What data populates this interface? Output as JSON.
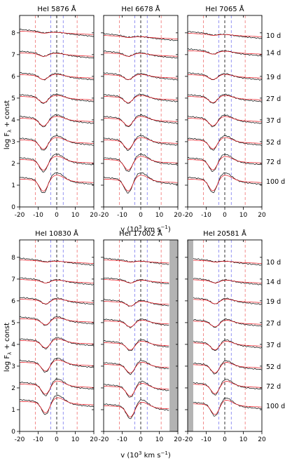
{
  "figure": {
    "epochs": [
      "10 d",
      "14 d",
      "19 d",
      "27 d",
      "37 d",
      "52 d",
      "72 d",
      "100 d"
    ],
    "y_label": "log F",
    "y_label_sub": "λ",
    "y_label_tail": " + const",
    "x_label": "v (10",
    "x_label_sup": "3",
    "x_label_tail": " km s",
    "x_label_sup2": "−1",
    "x_label_end": ")",
    "x_ticks": [
      "-20",
      "-10",
      "0",
      "10",
      "20"
    ],
    "y_ticks": [
      "0",
      "1",
      "2",
      "3",
      "4",
      "5",
      "6",
      "7",
      "8"
    ],
    "colors": {
      "observed": "#000000",
      "model": "#e8101a",
      "red_marker": "#f07070",
      "blue_marker": "#7a7af0",
      "shade": "#b3b3b3"
    }
  },
  "chart_data": [
    {
      "type": "line",
      "title": "HeI 5876 Å",
      "xlim": [
        -20,
        20
      ],
      "ylim": [
        0,
        8.8
      ],
      "row": 0,
      "col": 0,
      "markers_red": [
        -11.5,
        11.0
      ],
      "markers_blue": [
        -3.2,
        3.5
      ],
      "center": 0,
      "series": [
        {
          "name": "10 d",
          "baseline": 8.0
        },
        {
          "name": "14 d",
          "baseline": 7.0
        },
        {
          "name": "19 d",
          "baseline": 6.0
        },
        {
          "name": "27 d",
          "baseline": 5.0
        },
        {
          "name": "37 d",
          "baseline": 4.0
        },
        {
          "name": "52 d",
          "baseline": 3.0
        },
        {
          "name": "72 d",
          "baseline": 2.1
        },
        {
          "name": "100 d",
          "baseline": 1.2
        }
      ]
    },
    {
      "type": "line",
      "title": "HeI 6678 Å",
      "xlim": [
        -20,
        20
      ],
      "ylim": [
        0,
        8.8
      ],
      "row": 0,
      "col": 1,
      "markers_red": [
        -11.5,
        11.0
      ],
      "markers_blue": [
        -3.2,
        3.5
      ],
      "center": 0,
      "series": [
        {
          "name": "10 d",
          "baseline": 7.8
        },
        {
          "name": "14 d",
          "baseline": 7.0
        },
        {
          "name": "19 d",
          "baseline": 6.0
        },
        {
          "name": "27 d",
          "baseline": 5.0
        },
        {
          "name": "37 d",
          "baseline": 4.0
        },
        {
          "name": "52 d",
          "baseline": 3.0
        },
        {
          "name": "72 d",
          "baseline": 2.1
        },
        {
          "name": "100 d",
          "baseline": 1.2
        }
      ]
    },
    {
      "type": "line",
      "title": "HeI 7065 Å",
      "xlim": [
        -20,
        20
      ],
      "ylim": [
        0,
        8.8
      ],
      "row": 0,
      "col": 2,
      "markers_red": [
        -11.5,
        11.0
      ],
      "markers_blue": [
        -3.2,
        3.5
      ],
      "center": 0,
      "series": [
        {
          "name": "10 d",
          "baseline": 7.9
        },
        {
          "name": "14 d",
          "baseline": 7.1
        },
        {
          "name": "19 d",
          "baseline": 6.0
        },
        {
          "name": "27 d",
          "baseline": 5.0
        },
        {
          "name": "37 d",
          "baseline": 4.0
        },
        {
          "name": "52 d",
          "baseline": 3.0
        },
        {
          "name": "72 d",
          "baseline": 2.1
        },
        {
          "name": "100 d",
          "baseline": 1.2
        }
      ]
    },
    {
      "type": "line",
      "title": "HeI 10830 Å",
      "xlim": [
        -20,
        20
      ],
      "ylim": [
        0,
        8.8
      ],
      "row": 1,
      "col": 0,
      "markers_red": [
        -11.5,
        11.0
      ],
      "markers_blue": [
        -3.2,
        3.5
      ],
      "center": 0,
      "series": [
        {
          "name": "10 d",
          "baseline": 7.8
        },
        {
          "name": "14 d",
          "baseline": 6.9
        },
        {
          "name": "19 d",
          "baseline": 6.0
        },
        {
          "name": "27 d",
          "baseline": 5.1
        },
        {
          "name": "37 d",
          "baseline": 4.1
        },
        {
          "name": "52 d",
          "baseline": 3.1
        },
        {
          "name": "72 d",
          "baseline": 2.1
        },
        {
          "name": "100 d",
          "baseline": 1.3
        }
      ]
    },
    {
      "type": "line",
      "title": "HeI 17002 Å",
      "xlim": [
        -20,
        20
      ],
      "ylim": [
        0,
        8.8
      ],
      "row": 1,
      "col": 1,
      "markers_red": [
        -11.5,
        11.0
      ],
      "markers_blue": [
        -3.2,
        3.5
      ],
      "center": 0,
      "shade": [
        15.5,
        20
      ],
      "series": [
        {
          "name": "10 d",
          "baseline": 7.8
        },
        {
          "name": "14 d",
          "baseline": 6.9
        },
        {
          "name": "19 d",
          "baseline": 5.9
        },
        {
          "name": "27 d",
          "baseline": 5.0
        },
        {
          "name": "37 d",
          "baseline": 4.0
        },
        {
          "name": "52 d",
          "baseline": 3.0
        },
        {
          "name": "72 d",
          "baseline": 2.0
        },
        {
          "name": "100 d",
          "baseline": 1.1
        }
      ]
    },
    {
      "type": "line",
      "title": "HeI 20581 Å",
      "xlim": [
        -20,
        20
      ],
      "ylim": [
        0,
        8.8
      ],
      "row": 1,
      "col": 2,
      "markers_red": [
        -11.5,
        11.0
      ],
      "markers_blue": [
        -3.2,
        3.5
      ],
      "center": 0,
      "shade": [
        -20,
        -17
      ],
      "series": [
        {
          "name": "10 d",
          "baseline": 7.8
        },
        {
          "name": "14 d",
          "baseline": 6.9
        },
        {
          "name": "19 d",
          "baseline": 6.0
        },
        {
          "name": "27 d",
          "baseline": 5.0
        },
        {
          "name": "37 d",
          "baseline": 4.0
        },
        {
          "name": "52 d",
          "baseline": 3.0
        },
        {
          "name": "72 d",
          "baseline": 2.1
        },
        {
          "name": "100 d",
          "baseline": 1.2
        }
      ]
    }
  ]
}
